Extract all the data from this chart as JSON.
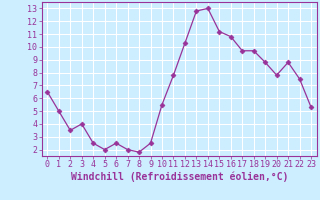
{
  "x": [
    0,
    1,
    2,
    3,
    4,
    5,
    6,
    7,
    8,
    9,
    10,
    11,
    12,
    13,
    14,
    15,
    16,
    17,
    18,
    19,
    20,
    21,
    22,
    23
  ],
  "y": [
    6.5,
    5.0,
    3.5,
    4.0,
    2.5,
    2.0,
    2.5,
    2.0,
    1.8,
    2.5,
    5.5,
    7.8,
    10.3,
    12.8,
    13.0,
    11.2,
    10.8,
    9.7,
    9.7,
    8.8,
    7.8,
    8.8,
    7.5,
    5.3
  ],
  "line_color": "#993399",
  "marker": "D",
  "marker_size": 2.5,
  "bg_color": "#cceeff",
  "grid_color": "#ffffff",
  "xlabel": "Windchill (Refroidissement éolien,°C)",
  "ylabel": "",
  "title": "",
  "xlim": [
    -0.5,
    23.5
  ],
  "ylim": [
    1.5,
    13.5
  ],
  "yticks": [
    2,
    3,
    4,
    5,
    6,
    7,
    8,
    9,
    10,
    11,
    12,
    13
  ],
  "xticks": [
    0,
    1,
    2,
    3,
    4,
    5,
    6,
    7,
    8,
    9,
    10,
    11,
    12,
    13,
    14,
    15,
    16,
    17,
    18,
    19,
    20,
    21,
    22,
    23
  ],
  "tick_color": "#993399",
  "label_color": "#993399",
  "spine_color": "#993399",
  "xlabel_fontsize": 7.0,
  "tick_fontsize": 6.0
}
